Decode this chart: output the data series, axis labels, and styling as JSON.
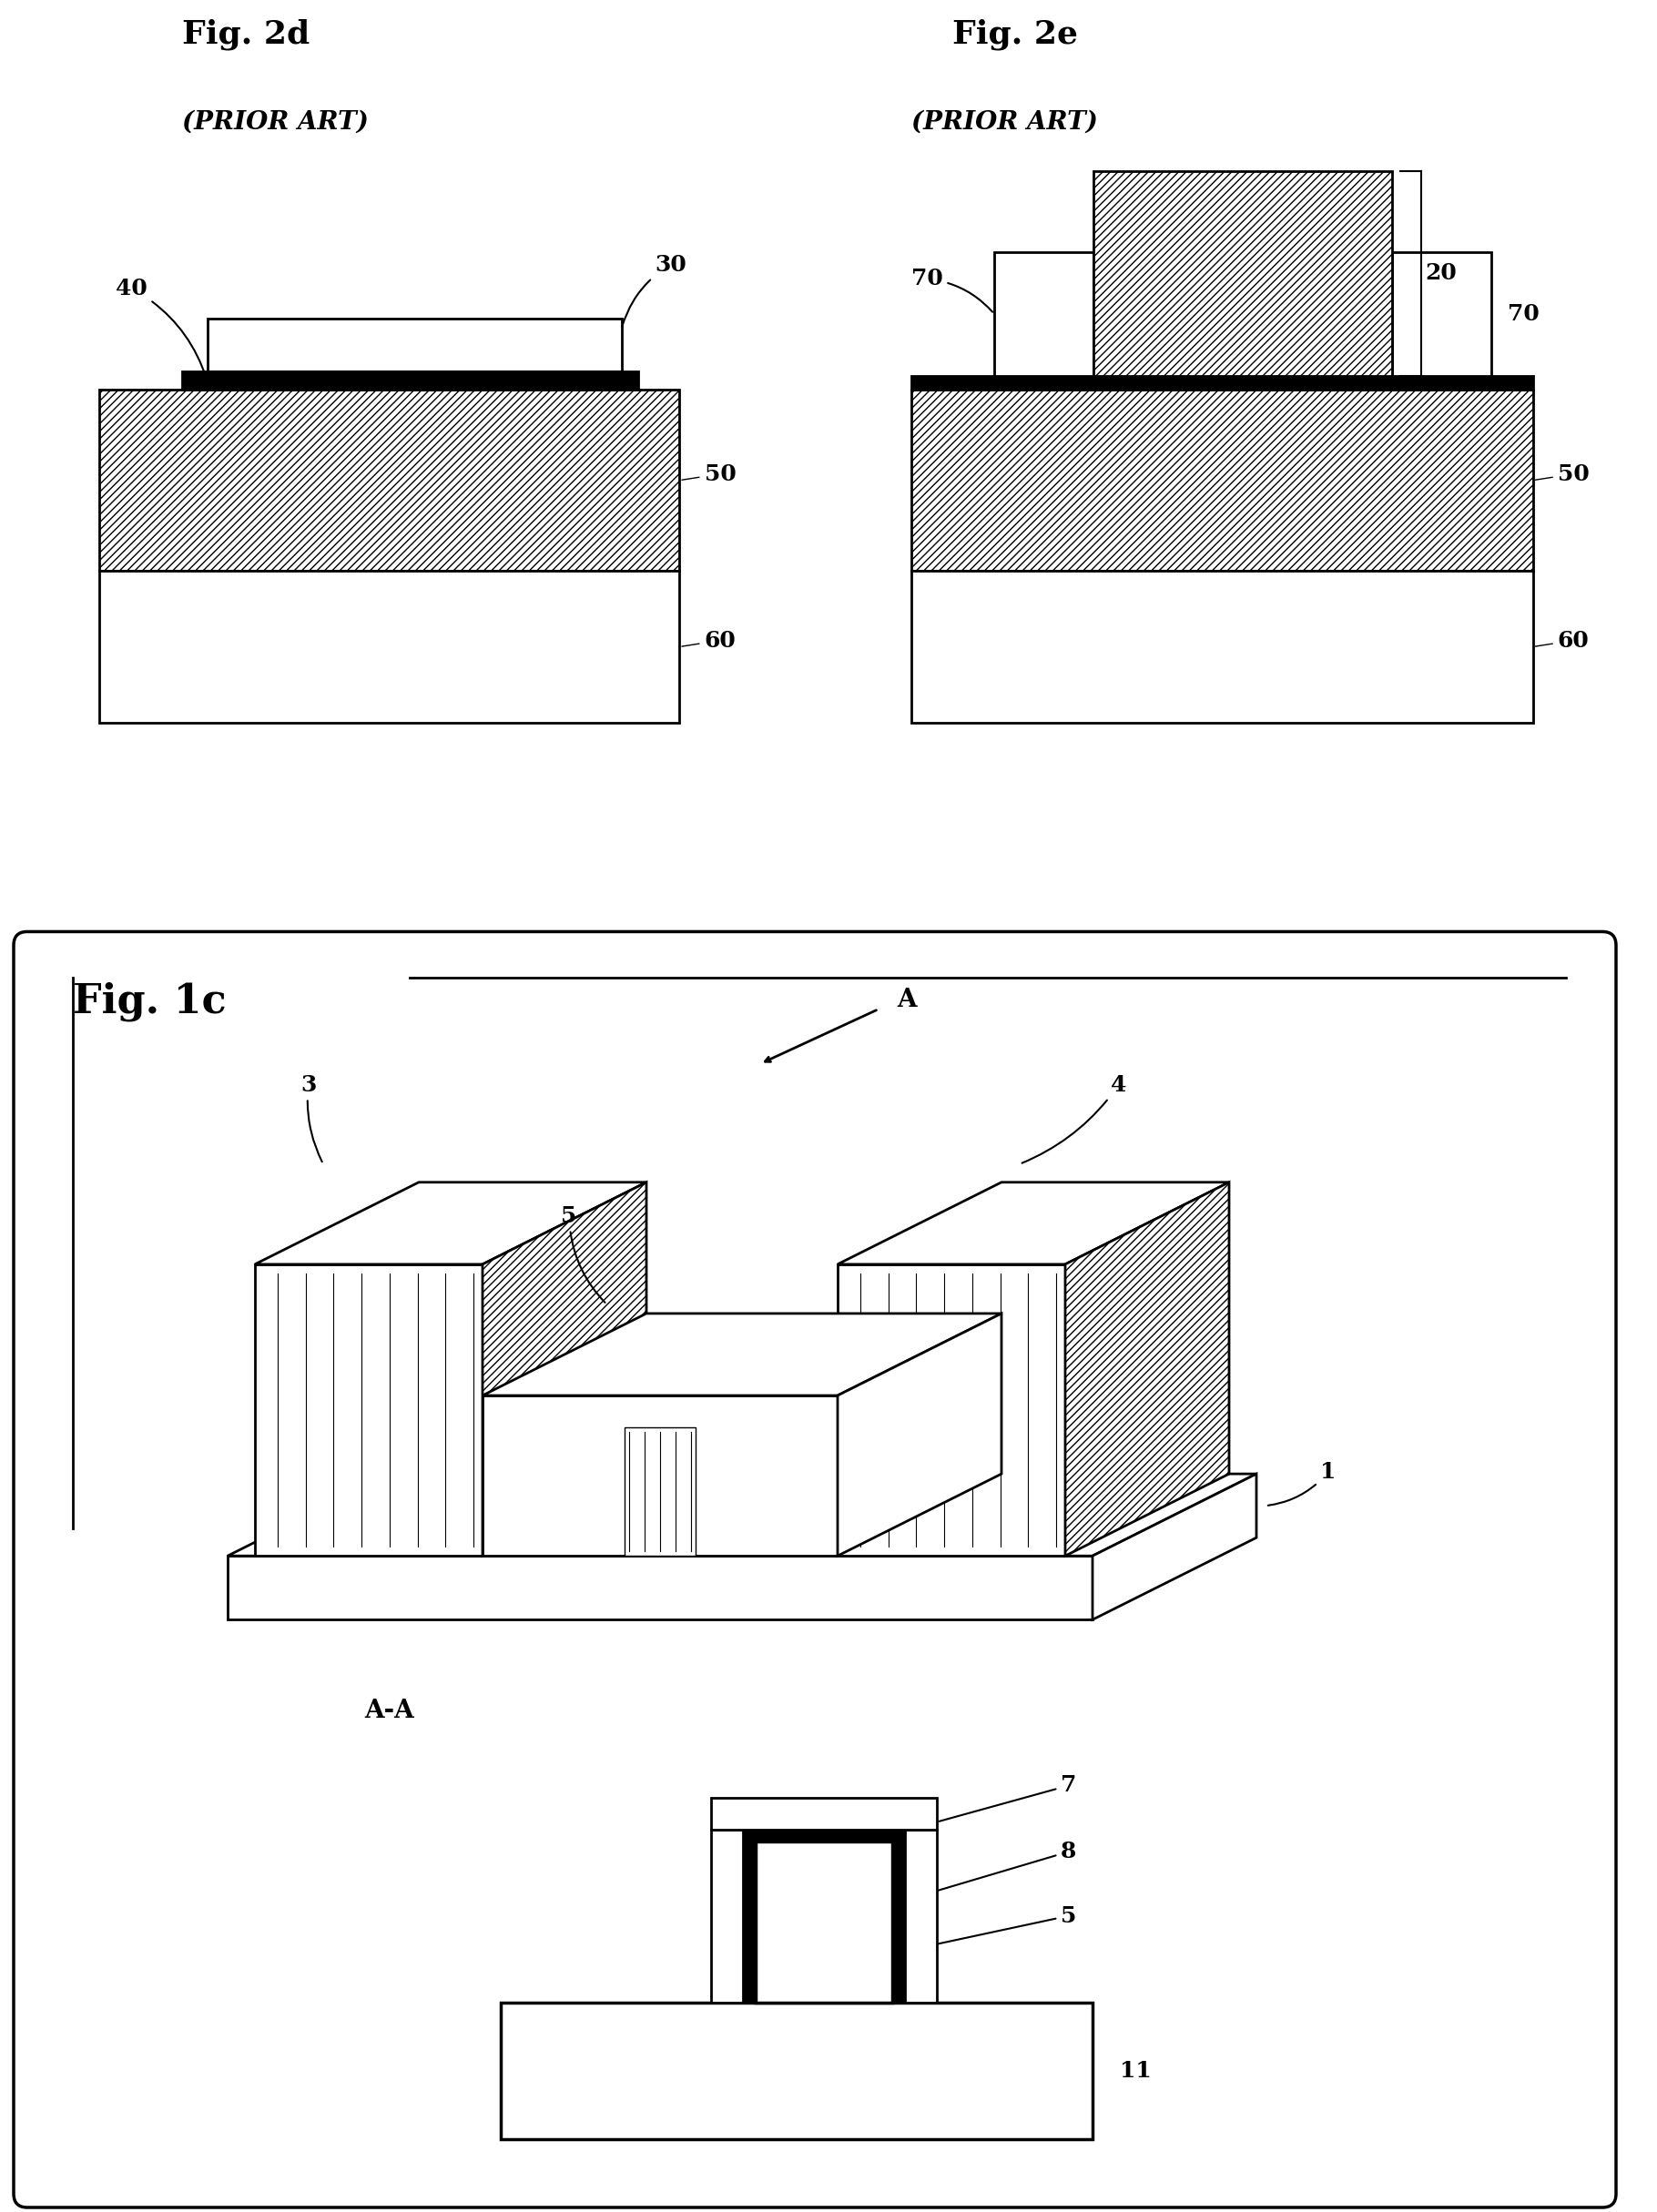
{
  "fig_title_2d": "Fig. 2d",
  "fig_subtitle_2d": "(PRIOR ART)",
  "fig_title_2e": "Fig. 2e",
  "fig_subtitle_2e": "(PRIOR ART)",
  "fig_title_1c": "Fig. 1c",
  "bg_color": "#ffffff",
  "label_fontsize": 18,
  "title_fontsize": 26,
  "subtitle_fontsize": 20,
  "lw": 2.0
}
